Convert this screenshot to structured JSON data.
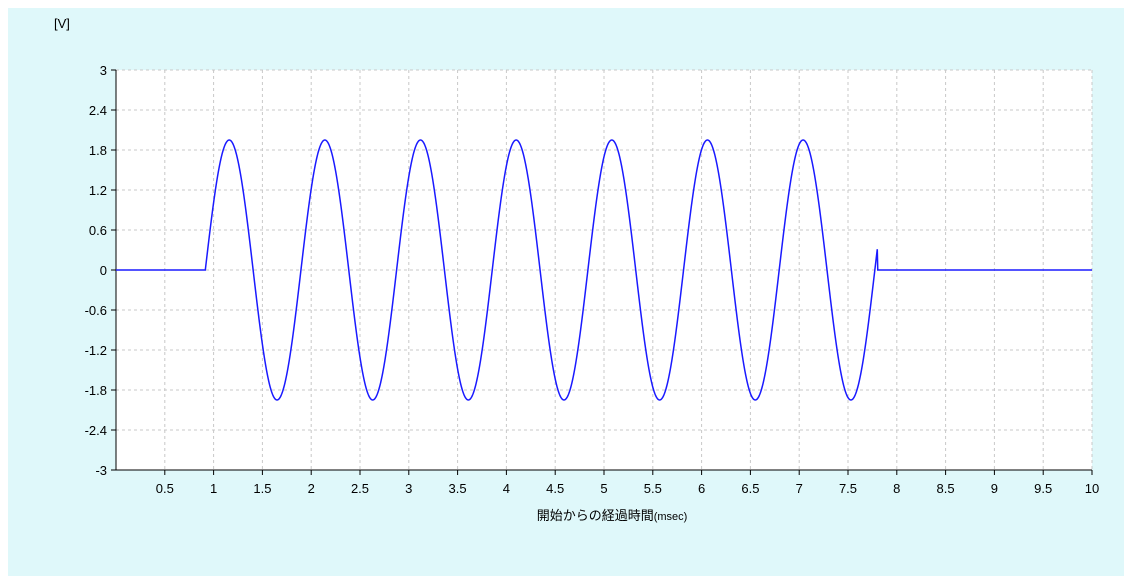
{
  "colors": {
    "background": "#dff8fa",
    "plot_area": "#ffffff",
    "grid": "#c8c8c8",
    "series": "#1a1aff",
    "axis": "#000000"
  },
  "chart_data": {
    "type": "line",
    "ylabel": "[V]",
    "xlabel_main": "開始からの経過時間",
    "xlabel_unit": "(msec)",
    "xlim": [
      0,
      10
    ],
    "ylim": [
      -3,
      3
    ],
    "x_ticks": [
      "0.5",
      "1",
      "1.5",
      "2",
      "2.5",
      "3",
      "3.5",
      "4",
      "4.5",
      "5",
      "5.5",
      "6",
      "6.5",
      "7",
      "7.5",
      "8",
      "8.5",
      "9",
      "9.5",
      "10"
    ],
    "y_ticks": [
      "3",
      "2.4",
      "1.8",
      "1.2",
      "0.6",
      "0",
      "-0.6",
      "-1.2",
      "-1.8",
      "-2.4",
      "-3"
    ],
    "grid": true,
    "grid_style": "dashed",
    "series": [
      {
        "style": "burst-sine",
        "baseline": 0,
        "amplitude": 1.95,
        "period_ms": 0.98,
        "cycles": 7,
        "start_ms": 0.92,
        "end_ms": 7.8,
        "first_peak_ms": 1.16,
        "peaks_at_ms": [
          1.16,
          2.14,
          3.12,
          4.1,
          5.08,
          6.06,
          7.04
        ],
        "troughs_at_ms": [
          1.65,
          2.63,
          3.61,
          4.59,
          5.57,
          6.55,
          7.53
        ]
      }
    ]
  }
}
